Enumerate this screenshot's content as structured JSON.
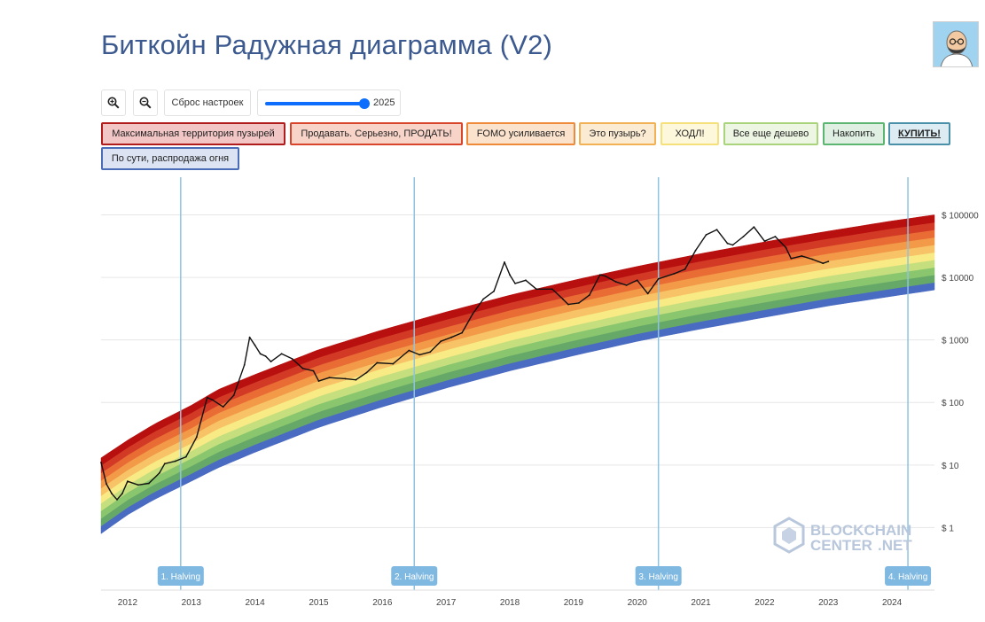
{
  "page": {
    "title": "Биткойн Радужная диаграмма (V2)"
  },
  "toolbar": {
    "zoom_in_icon": "zoom-in-icon",
    "zoom_out_icon": "zoom-out-icon",
    "reset_label": "Сброс настроек",
    "slider_value": "2025",
    "slider_fraction": 1.0
  },
  "legend": [
    {
      "label": "Максимальная территория пузырей",
      "border": "#b01c1c",
      "fill": "#f3c6c6"
    },
    {
      "label": "Продавать. Серьезно, ПРОДАТЬ!",
      "border": "#d9452a",
      "fill": "#f8d3c8"
    },
    {
      "label": "FOMO усиливается",
      "border": "#ee8a3a",
      "fill": "#fbe2cc"
    },
    {
      "label": "Это пузырь?",
      "border": "#f3b155",
      "fill": "#fcebd3"
    },
    {
      "label": "ХОДЛ!",
      "border": "#f5e07a",
      "fill": "#fdf7dc"
    },
    {
      "label": "Все еще дешево",
      "border": "#a9d47b",
      "fill": "#ecf6e2"
    },
    {
      "label": "Накопить",
      "border": "#5cb672",
      "fill": "#dff0e3"
    },
    {
      "label": "КУПИТЬ!",
      "border": "#4a90a8",
      "fill": "#dcecf2"
    },
    {
      "label": "По сути, распродажа огня",
      "border": "#4b6cb7",
      "fill": "#dce4f4"
    }
  ],
  "watermark": {
    "line1": "BLOCKCHAIN",
    "line2": "CENTER",
    "line3": ".NET"
  },
  "chart_data": {
    "type": "area",
    "title": "Биткойн Радужная диаграмма (V2)",
    "y_scale": "log",
    "y_ticks": [
      {
        "value": 1,
        "label": "$ 1"
      },
      {
        "value": 10,
        "label": "$ 10"
      },
      {
        "value": 100,
        "label": "$ 100"
      },
      {
        "value": 1000,
        "label": "$ 1000"
      },
      {
        "value": 10000,
        "label": "$ 10000"
      },
      {
        "value": 100000,
        "label": "$ 100000"
      }
    ],
    "x_ticks": [
      "2012",
      "2013",
      "2014",
      "2015",
      "2016",
      "2017",
      "2018",
      "2019",
      "2020",
      "2021",
      "2022",
      "2023",
      "2024"
    ],
    "xlim": [
      "2011-08",
      "2024-09"
    ],
    "ylim": [
      0.1,
      400000
    ],
    "band_colors": [
      "#4a6bc2",
      "#66a867",
      "#8ac66e",
      "#c6df7e",
      "#f8ea84",
      "#f7c366",
      "#f29a47",
      "#e96c35",
      "#d23a26",
      "#b80f0f"
    ],
    "rainbow_bottom": [
      [
        "2011-08",
        0.8
      ],
      [
        "2012-01",
        1.6
      ],
      [
        "2012-06",
        2.8
      ],
      [
        "2013-01",
        5.5
      ],
      [
        "2013-06",
        9
      ],
      [
        "2014-01",
        16
      ],
      [
        "2015-01",
        40
      ],
      [
        "2016-01",
        85
      ],
      [
        "2017-01",
        170
      ],
      [
        "2018-01",
        320
      ],
      [
        "2019-01",
        560
      ],
      [
        "2020-01",
        950
      ],
      [
        "2021-01",
        1500
      ],
      [
        "2022-01",
        2300
      ],
      [
        "2023-01",
        3500
      ],
      [
        "2024-01",
        5000
      ],
      [
        "2024-09",
        6300
      ]
    ],
    "rainbow_top": [
      [
        "2011-08",
        13
      ],
      [
        "2012-01",
        25
      ],
      [
        "2012-06",
        45
      ],
      [
        "2013-01",
        90
      ],
      [
        "2013-06",
        160
      ],
      [
        "2014-01",
        280
      ],
      [
        "2015-01",
        700
      ],
      [
        "2016-01",
        1450
      ],
      [
        "2017-01",
        2800
      ],
      [
        "2018-01",
        5200
      ],
      [
        "2019-01",
        9000
      ],
      [
        "2020-01",
        15000
      ],
      [
        "2021-01",
        24000
      ],
      [
        "2022-01",
        37000
      ],
      [
        "2023-01",
        55000
      ],
      [
        "2024-01",
        80000
      ],
      [
        "2024-09",
        100000
      ]
    ],
    "series": [
      {
        "values": [
          [
            "2011-08",
            11
          ],
          [
            "2011-09",
            5
          ],
          [
            "2011-10",
            3.5
          ],
          [
            "2011-11",
            2.8
          ],
          [
            "2011-12",
            3.5
          ],
          [
            "2012-01",
            5.5
          ],
          [
            "2012-03",
            4.8
          ],
          [
            "2012-05",
            5.1
          ],
          [
            "2012-07",
            7.5
          ],
          [
            "2012-08",
            10.5
          ],
          [
            "2012-10",
            11.5
          ],
          [
            "2012-12",
            13.5
          ],
          [
            "2013-02",
            28
          ],
          [
            "2013-04",
            120
          ],
          [
            "2013-05",
            110
          ],
          [
            "2013-07",
            85
          ],
          [
            "2013-09",
            130
          ],
          [
            "2013-11",
            400
          ],
          [
            "2013-12",
            1100
          ],
          [
            "2014-01",
            820
          ],
          [
            "2014-02",
            600
          ],
          [
            "2014-03",
            550
          ],
          [
            "2014-04",
            450
          ],
          [
            "2014-06",
            600
          ],
          [
            "2014-08",
            500
          ],
          [
            "2014-10",
            350
          ],
          [
            "2014-12",
            320
          ],
          [
            "2015-01",
            220
          ],
          [
            "2015-03",
            250
          ],
          [
            "2015-06",
            240
          ],
          [
            "2015-08",
            230
          ],
          [
            "2015-10",
            300
          ],
          [
            "2015-12",
            430
          ],
          [
            "2016-03",
            415
          ],
          [
            "2016-06",
            680
          ],
          [
            "2016-08",
            580
          ],
          [
            "2016-10",
            640
          ],
          [
            "2016-12",
            950
          ],
          [
            "2017-02",
            1100
          ],
          [
            "2017-04",
            1300
          ],
          [
            "2017-06",
            2600
          ],
          [
            "2017-08",
            4500
          ],
          [
            "2017-10",
            6000
          ],
          [
            "2017-12",
            17500
          ],
          [
            "2018-01",
            11000
          ],
          [
            "2018-02",
            8000
          ],
          [
            "2018-04",
            9000
          ],
          [
            "2018-06",
            6500
          ],
          [
            "2018-09",
            6500
          ],
          [
            "2018-11",
            4500
          ],
          [
            "2018-12",
            3700
          ],
          [
            "2019-02",
            3900
          ],
          [
            "2019-04",
            5200
          ],
          [
            "2019-06",
            11000
          ],
          [
            "2019-07",
            10500
          ],
          [
            "2019-09",
            8500
          ],
          [
            "2019-11",
            7500
          ],
          [
            "2020-01",
            9000
          ],
          [
            "2020-03",
            5500
          ],
          [
            "2020-05",
            9500
          ],
          [
            "2020-08",
            11500
          ],
          [
            "2020-10",
            13500
          ],
          [
            "2020-12",
            27000
          ],
          [
            "2021-02",
            48000
          ],
          [
            "2021-04",
            58000
          ],
          [
            "2021-06",
            35000
          ],
          [
            "2021-07",
            33000
          ],
          [
            "2021-09",
            45000
          ],
          [
            "2021-11",
            64000
          ],
          [
            "2022-01",
            38000
          ],
          [
            "2022-03",
            45000
          ],
          [
            "2022-05",
            30000
          ],
          [
            "2022-06",
            20000
          ],
          [
            "2022-08",
            22000
          ],
          [
            "2022-10",
            19500
          ],
          [
            "2022-12",
            16800
          ],
          [
            "2023-01",
            18000
          ]
        ]
      }
    ],
    "halvings": [
      {
        "label": "1. Halving",
        "date": "2012-11"
      },
      {
        "label": "2. Halving",
        "date": "2016-07"
      },
      {
        "label": "3. Halving",
        "date": "2020-05"
      },
      {
        "label": "4. Halving",
        "date": "2024-04"
      }
    ]
  }
}
